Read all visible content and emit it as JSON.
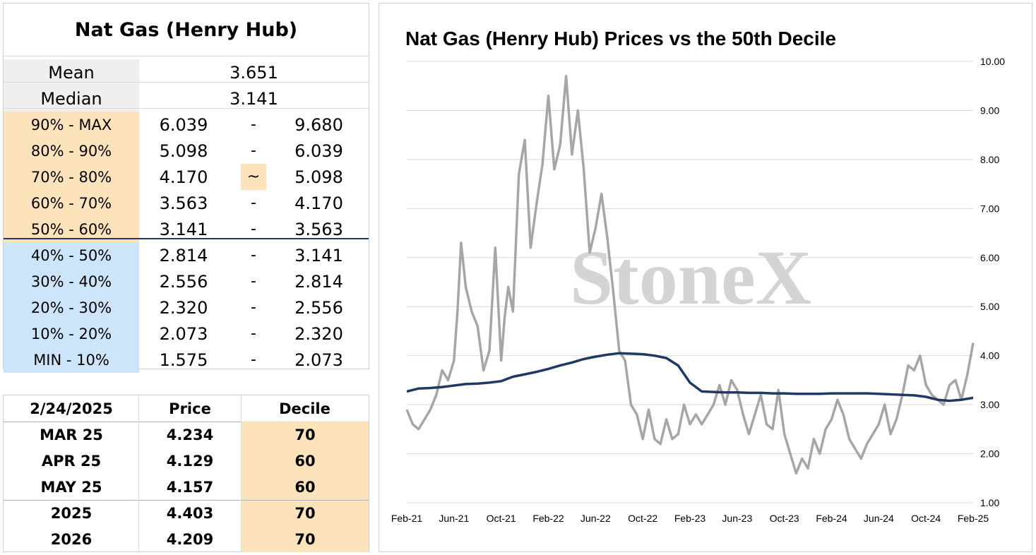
{
  "stats": {
    "title": "Nat Gas (Henry Hub)",
    "mean_label": "Mean",
    "mean_value": "3.651",
    "median_label": "Median",
    "median_value": "3.141",
    "deciles": [
      {
        "label": "90% - MAX",
        "low": "6.039",
        "sep": "-",
        "high": "9.680",
        "color": "orange"
      },
      {
        "label": "80% - 90%",
        "low": "5.098",
        "sep": "-",
        "high": "6.039",
        "color": "orange"
      },
      {
        "label": "70% - 80%",
        "low": "4.170",
        "sep": "~",
        "high": "5.098",
        "color": "orange",
        "sep_highlight": true
      },
      {
        "label": "60% - 70%",
        "low": "3.563",
        "sep": "-",
        "high": "4.170",
        "color": "orange"
      },
      {
        "label": "50% - 60%",
        "low": "3.141",
        "sep": "-",
        "high": "3.563",
        "color": "orange"
      },
      {
        "label": "40% - 50%",
        "low": "2.814",
        "sep": "-",
        "high": "3.141",
        "color": "blue"
      },
      {
        "label": "30% - 40%",
        "low": "2.556",
        "sep": "-",
        "high": "2.814",
        "color": "blue"
      },
      {
        "label": "20% - 30%",
        "low": "2.320",
        "sep": "-",
        "high": "2.556",
        "color": "blue"
      },
      {
        "label": "10% - 20%",
        "low": "2.073",
        "sep": "-",
        "high": "2.320",
        "color": "blue"
      },
      {
        "label": "MIN - 10%",
        "low": "1.575",
        "sep": "-",
        "high": "2.073",
        "color": "blue"
      }
    ]
  },
  "contracts": {
    "headers": [
      "2/24/2025",
      "Price",
      "Decile"
    ],
    "rows": [
      {
        "name": "MAR 25",
        "price": "4.234",
        "decile": "70"
      },
      {
        "name": "APR 25",
        "price": "4.129",
        "decile": "60"
      },
      {
        "name": "MAY 25",
        "price": "4.157",
        "decile": "60"
      },
      {
        "name": "2025",
        "price": "4.403",
        "decile": "70"
      },
      {
        "name": "2026",
        "price": "4.209",
        "decile": "70"
      }
    ]
  },
  "colors": {
    "orange": "#fde3bb",
    "blue": "#cce5fb",
    "gray_line": "#a6a6a6",
    "navy_line": "#1f3864",
    "divider": "#1f3864"
  },
  "watermark": "StoneX",
  "chart_data": {
    "type": "line",
    "title": "Nat Gas (Henry Hub) Prices vs the 50th Decile",
    "xlabel": "",
    "ylabel": "",
    "ylim": [
      1.0,
      10.0
    ],
    "yticks": [
      "1.00",
      "2.00",
      "3.00",
      "4.00",
      "5.00",
      "6.00",
      "7.00",
      "8.00",
      "9.00",
      "10.00"
    ],
    "x_ticks": [
      "Feb-21",
      "Jun-21",
      "Oct-21",
      "Feb-22",
      "Jun-22",
      "Oct-22",
      "Feb-23",
      "Jun-23",
      "Oct-23",
      "Feb-24",
      "Jun-24",
      "Oct-24",
      "Feb-25"
    ],
    "grid": true,
    "legend": "none",
    "series": [
      {
        "color": "#a6a6a6",
        "x": [
          0,
          0.5,
          1,
          1.5,
          2,
          2.5,
          3,
          3.5,
          4,
          4.3,
          4.6,
          5,
          5.5,
          6,
          6.5,
          7,
          7.5,
          8,
          8.3,
          8.6,
          9,
          9.5,
          10,
          10.5,
          11,
          11.5,
          12,
          12.5,
          13,
          13.5,
          14,
          14.5,
          15,
          15.5,
          16,
          16.5,
          17,
          17.5,
          18,
          18.5,
          19,
          19.5,
          20,
          20.5,
          21,
          21.5,
          22,
          22.5,
          23,
          23.5,
          24,
          24.5,
          25,
          25.5,
          26,
          26.5,
          27,
          27.5,
          28,
          28.5,
          29,
          29.5,
          30,
          30.5,
          31,
          31.5,
          32,
          32.5,
          33,
          33.5,
          34,
          34.5,
          35,
          35.5,
          36,
          36.5,
          37,
          37.5,
          38,
          38.5,
          39,
          39.5,
          40,
          40.5,
          41,
          41.5,
          42,
          42.5,
          43,
          43.5,
          44,
          44.5,
          45,
          45.5,
          46,
          46.5,
          47,
          47.5,
          48
        ],
        "values": [
          2.9,
          2.6,
          2.5,
          2.7,
          2.9,
          3.2,
          3.7,
          3.5,
          3.9,
          4.9,
          6.3,
          5.4,
          4.9,
          4.6,
          3.7,
          4.1,
          6.2,
          3.9,
          4.8,
          5.4,
          4.9,
          7.7,
          8.4,
          6.2,
          7.1,
          7.9,
          9.3,
          7.8,
          8.3,
          9.7,
          8.1,
          9.0,
          7.8,
          6.1,
          6.6,
          7.3,
          6.4,
          5.3,
          4.1,
          3.9,
          3.0,
          2.8,
          2.3,
          2.9,
          2.3,
          2.2,
          2.7,
          2.3,
          2.4,
          3.0,
          2.6,
          2.8,
          2.6,
          2.8,
          3.0,
          3.4,
          3.0,
          3.5,
          3.3,
          2.8,
          2.4,
          2.8,
          3.2,
          2.6,
          2.5,
          3.3,
          2.4,
          2.0,
          1.6,
          1.9,
          1.7,
          2.3,
          2.0,
          2.5,
          2.7,
          3.1,
          2.8,
          2.3,
          2.1,
          1.9,
          2.2,
          2.4,
          2.6,
          3.0,
          2.4,
          2.7,
          3.2,
          3.8,
          3.7,
          4.0,
          3.4,
          3.2,
          3.1,
          3.0,
          3.4,
          3.5,
          3.1,
          3.6,
          4.26
        ]
      },
      {
        "color": "#1f3864",
        "x": [
          0,
          1,
          2,
          3,
          4,
          5,
          6,
          7,
          8,
          9,
          10,
          11,
          12,
          13,
          14,
          15,
          16,
          17,
          18,
          19,
          20,
          21,
          22,
          23,
          24,
          25,
          26,
          27,
          28,
          29,
          30,
          31,
          32,
          33,
          34,
          35,
          36,
          37,
          38,
          39,
          40,
          41,
          42,
          43,
          44,
          45,
          46,
          46.5,
          47,
          47.5,
          48
        ],
        "values": [
          3.27,
          3.33,
          3.34,
          3.36,
          3.39,
          3.42,
          3.43,
          3.45,
          3.48,
          3.57,
          3.62,
          3.67,
          3.73,
          3.8,
          3.86,
          3.93,
          3.98,
          4.02,
          4.05,
          4.04,
          4.03,
          4.0,
          3.95,
          3.8,
          3.45,
          3.27,
          3.26,
          3.25,
          3.25,
          3.24,
          3.24,
          3.23,
          3.23,
          3.22,
          3.22,
          3.22,
          3.23,
          3.23,
          3.23,
          3.23,
          3.22,
          3.21,
          3.2,
          3.19,
          3.16,
          3.1,
          3.08,
          3.09,
          3.1,
          3.12,
          3.14
        ]
      }
    ]
  }
}
